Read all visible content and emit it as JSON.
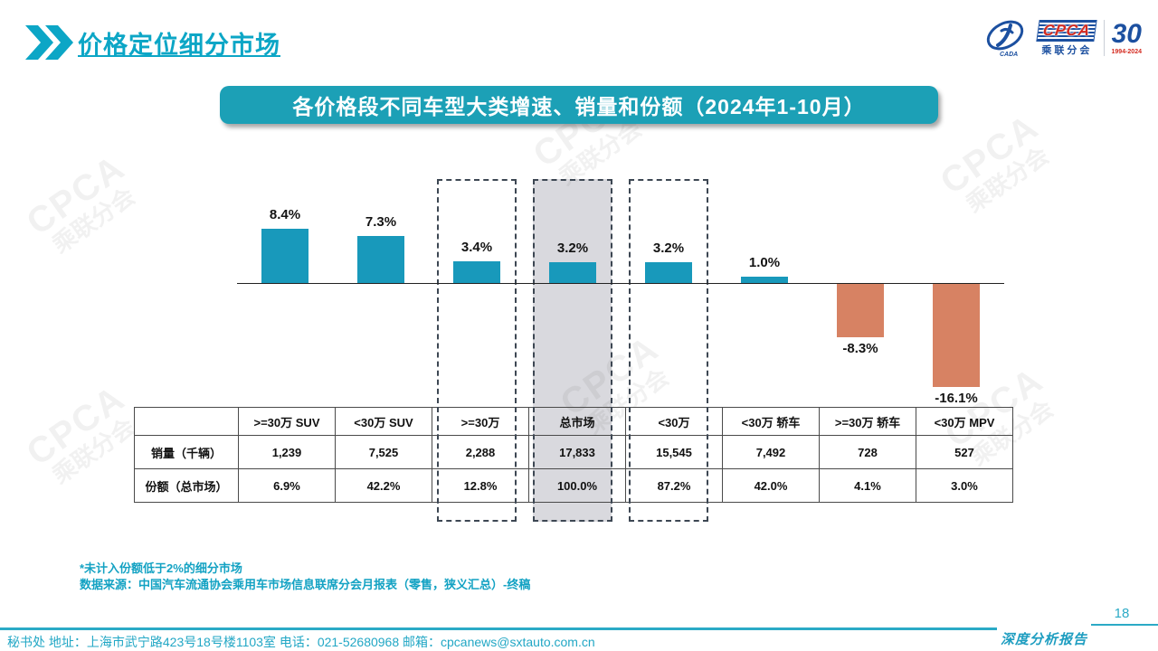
{
  "page": {
    "title": "价格定位细分市场",
    "page_number": "18",
    "report_label": "深度分析报告",
    "footer_contact": "秘书处  地址：上海市武宁路423号18号楼1103室 电话：021-52680968   邮箱：cpcanews@sxtauto.com.cn"
  },
  "logo": {
    "cpca_text": "CPCA",
    "cpca_sub": "乘联分会",
    "cada_text": "CADA",
    "anniversary_number": "3",
    "anniversary_ring": "0",
    "anniversary_years": "1994-2024"
  },
  "banner": {
    "title": "各价格段不同车型大类增速、销量和份额（2024年1-10月）"
  },
  "watermark_text": {
    "big": "CPCA",
    "small": "乘联分会"
  },
  "chart_data": {
    "type": "bar",
    "title": "各价格段不同车型大类增速、销量和份额（2024年1-10月）",
    "categories": [
      ">=30万 SUV",
      "<30万 SUV",
      ">=30万",
      "总市场",
      "<30万",
      "<30万 轿车",
      ">=30万 轿车",
      "<30万 MPV"
    ],
    "series": [
      {
        "name": "增速(%)",
        "values": [
          8.4,
          7.3,
          3.4,
          3.2,
          3.2,
          1.0,
          -8.3,
          -16.1
        ],
        "labels": [
          "8.4%",
          "7.3%",
          "3.4%",
          "3.2%",
          "3.2%",
          "1.0%",
          "-8.3%",
          "-16.1%"
        ]
      },
      {
        "name": "销量（千辆）",
        "values": [
          1239,
          7525,
          2288,
          17833,
          15545,
          7492,
          728,
          527
        ]
      },
      {
        "name": "份额（总市场）",
        "values": [
          6.9,
          42.2,
          12.8,
          100.0,
          87.2,
          42.0,
          4.1,
          3.0
        ]
      }
    ],
    "highlight": {
      "dashed_categories": [
        ">=30万",
        "<30万"
      ],
      "filled_category": "总市场"
    },
    "colors": {
      "positive": "#1899BB",
      "negative": "#D78263",
      "highlight_fill": "#D9D9DE"
    },
    "axis": {
      "baseline": 0,
      "grid": false,
      "value_suffix": "%",
      "legend": "none"
    }
  },
  "table": {
    "row_headers": [
      "销量（千辆）",
      "份额（总市场）"
    ],
    "columns": [
      ">=30万 SUV",
      "<30万 SUV",
      ">=30万",
      "总市场",
      "<30万",
      "<30万 轿车",
      ">=30万 轿车",
      "<30万 MPV"
    ],
    "rows": [
      [
        "1,239",
        "7,525",
        "2,288",
        "17,833",
        "15,545",
        "7,492",
        "728",
        "527"
      ],
      [
        "6.9%",
        "42.2%",
        "12.8%",
        "100.0%",
        "87.2%",
        "42.0%",
        "4.1%",
        "3.0%"
      ]
    ]
  },
  "notes": {
    "line1": "*未计入份额低于2%的细分市场",
    "line2": "数据来源：中国汽车流通协会乘用车市场信息联席分会月报表（零售，狭义汇总）-终稿"
  }
}
